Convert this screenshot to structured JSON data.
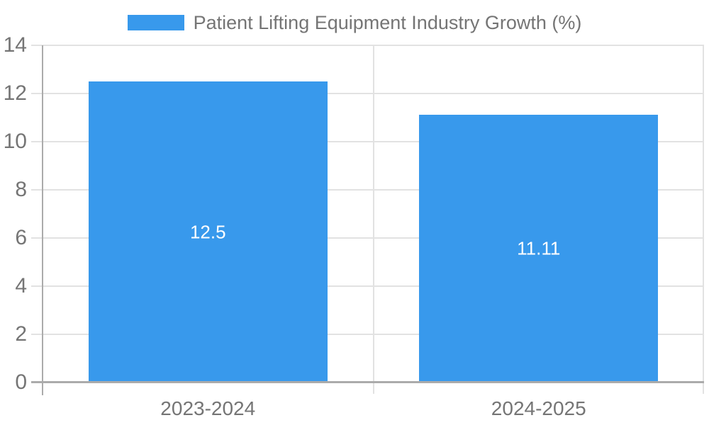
{
  "chart_data": {
    "type": "bar",
    "title": "Patient Lifting Equipment Industry Growth (%)",
    "categories": [
      "2023-2024",
      "2024-2025"
    ],
    "series": [
      {
        "name": "Patient Lifting Equipment Industry Growth (%)",
        "values": [
          12.5,
          11.11
        ]
      }
    ],
    "values": [
      12.5,
      11.11
    ],
    "value_labels": [
      "12.5",
      "11.11"
    ],
    "xlabel": "",
    "ylabel": "",
    "ylim": [
      0,
      14
    ],
    "yticks": [
      0,
      2,
      4,
      6,
      8,
      10,
      12,
      14
    ],
    "ytick_labels": [
      "0",
      "2",
      "4",
      "6",
      "8",
      "10",
      "12",
      "14"
    ],
    "grid": true,
    "legend_position": "top-center",
    "colors": {
      "bar": "#3899ec",
      "text": "#757575",
      "grid": "#e2e2e2",
      "axis": "#ababab",
      "value_label": "#ffffff",
      "background": "#ffffff"
    }
  }
}
